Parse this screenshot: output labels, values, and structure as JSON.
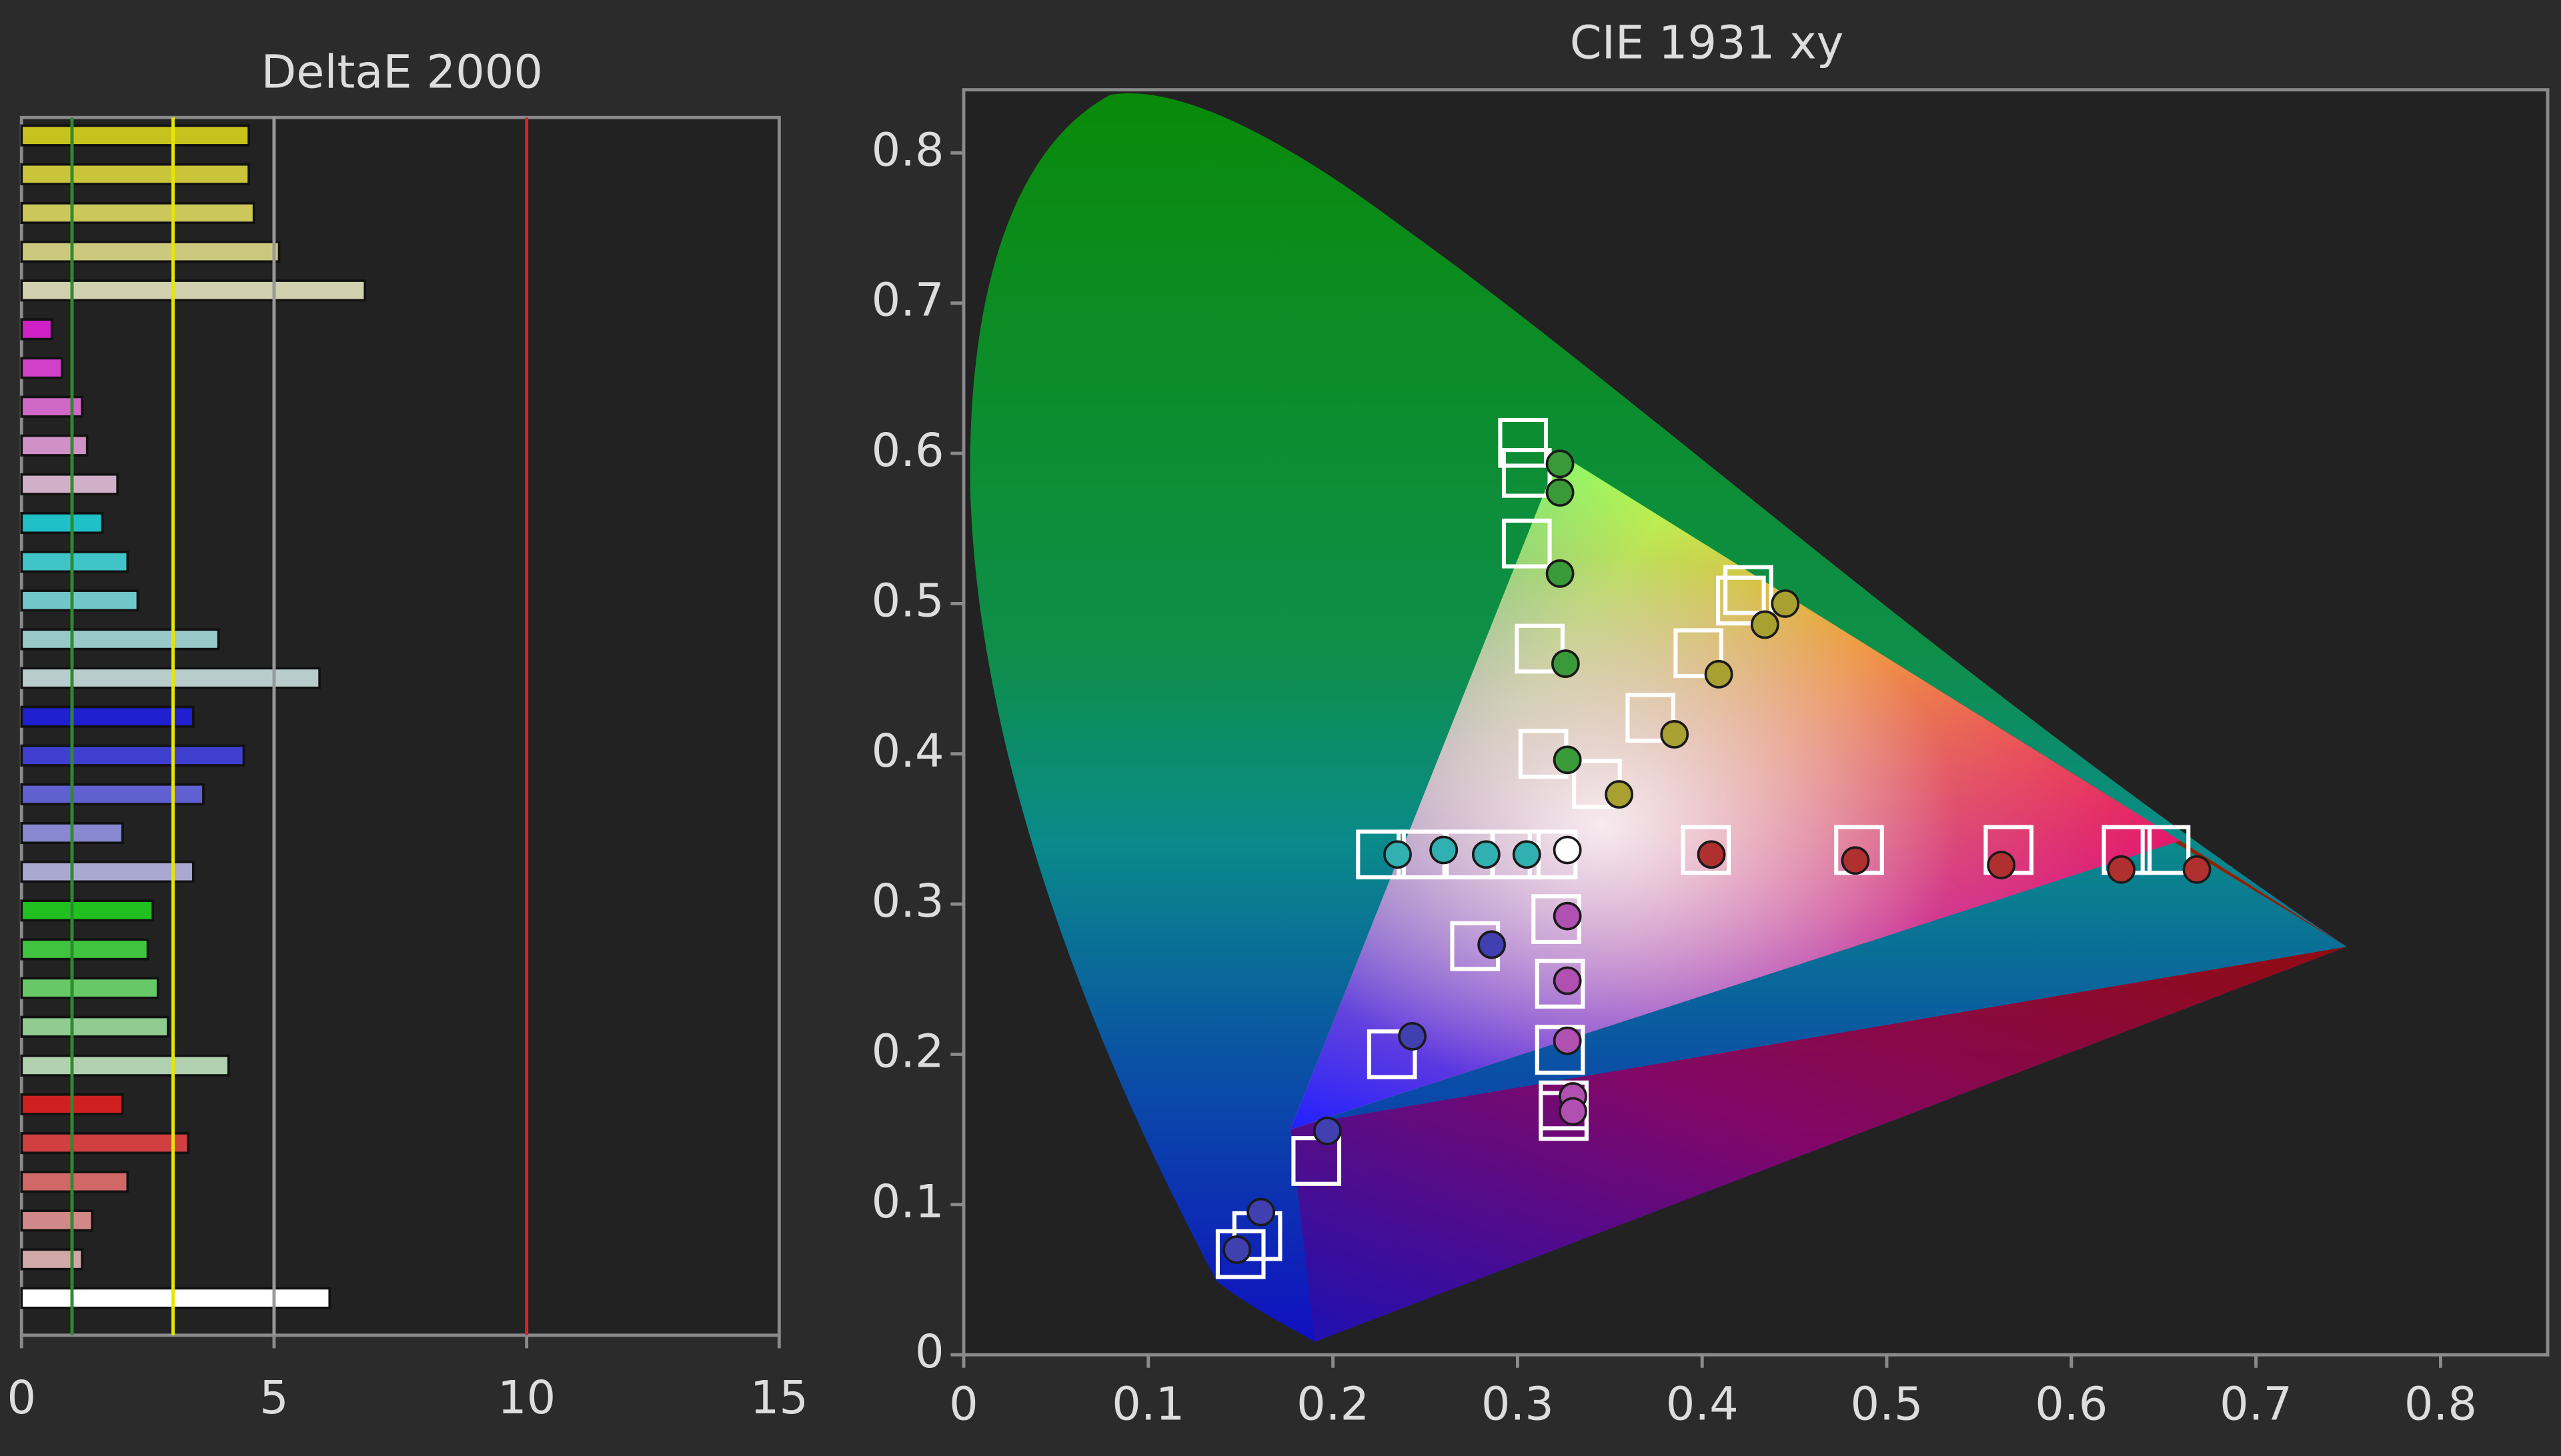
{
  "chart_data": [
    {
      "type": "bar",
      "orientation": "horizontal",
      "title": "DeltaE 2000",
      "values": [
        4.5,
        4.5,
        4.6,
        5.1,
        6.8,
        0.6,
        0.8,
        1.2,
        1.3,
        1.9,
        1.6,
        2.1,
        2.3,
        3.9,
        5.9,
        3.4,
        4.4,
        3.6,
        2.0,
        3.4,
        2.6,
        2.5,
        2.7,
        2.9,
        4.1,
        2.0,
        3.3,
        2.1,
        1.4,
        1.2,
        6.1
      ],
      "colors": [
        "#c8c21e",
        "#c9c43a",
        "#cbc75a",
        "#ccc97e",
        "#d0cfae",
        "#d020c8",
        "#d040c8",
        "#d068c8",
        "#d090c8",
        "#d0b0c8",
        "#20c0c8",
        "#40c4c8",
        "#70c6c8",
        "#98c8c8",
        "#b8cccc",
        "#2020d0",
        "#4040d0",
        "#6060d0",
        "#8888d0",
        "#a8a8d0",
        "#20c020",
        "#40c440",
        "#68c868",
        "#90cc90",
        "#b0d0b0",
        "#d02020",
        "#d04040",
        "#d06868",
        "#d08888",
        "#d0a8a8",
        "#ffffff"
      ],
      "xlim": [
        0,
        15
      ],
      "xticks": [
        0,
        5,
        10,
        15
      ],
      "reference_lines": [
        {
          "value": 1,
          "color": "#2e8b2e"
        },
        {
          "value": 3,
          "color": "#e6e600"
        },
        {
          "value": 5,
          "color": "#999999"
        },
        {
          "value": 10,
          "color": "#e02020"
        }
      ]
    },
    {
      "type": "scatter",
      "title": "CIE 1931 xy",
      "xlim": [
        0,
        0.858
      ],
      "ylim": [
        0,
        0.842
      ],
      "xticks": [
        0,
        0.1,
        0.2,
        0.3,
        0.4,
        0.5,
        0.6,
        0.7,
        0.8
      ],
      "yticks": [
        0,
        0.1,
        0.2,
        0.3,
        0.4,
        0.5,
        0.6,
        0.7,
        0.8
      ],
      "series": [
        {
          "marker": "square",
          "color": "#ffffff",
          "x": [
            0.303,
            0.305,
            0.305,
            0.312,
            0.314,
            0.425,
            0.421,
            0.398,
            0.372,
            0.343,
            0.651,
            0.63,
            0.566,
            0.485,
            0.402,
            0.226,
            0.248,
            0.274,
            0.299,
            0.319,
            0.321,
            0.323,
            0.323,
            0.325,
            0.325,
            0.277,
            0.232,
            0.191,
            0.159,
            0.15
          ],
          "y": [
            0.607,
            0.587,
            0.54,
            0.47,
            0.4,
            0.509,
            0.502,
            0.467,
            0.424,
            0.38,
            0.336,
            0.336,
            0.336,
            0.336,
            0.336,
            0.333,
            0.333,
            0.333,
            0.333,
            0.333,
            0.29,
            0.247,
            0.203,
            0.166,
            0.159,
            0.272,
            0.2,
            0.129,
            0.079,
            0.067
          ]
        },
        {
          "marker": "circle",
          "colors": [
            "#3a9a3a",
            "#3a9a3a",
            "#3a9a3a",
            "#3a9a3a",
            "#3a9a3a",
            "#a8a030",
            "#a8a030",
            "#a8a030",
            "#a8a030",
            "#a8a030",
            "#b03030",
            "#b03030",
            "#b03030",
            "#b03030",
            "#b03030",
            "#30b0b0",
            "#30b0b0",
            "#30b0b0",
            "#30b0b0",
            "#ffffff",
            "#b050b0",
            "#b050b0",
            "#b050b0",
            "#b050b0",
            "#b050b0",
            "#4040b0",
            "#4040b0",
            "#4040b0",
            "#4040b0",
            "#4040b0"
          ],
          "x": [
            0.323,
            0.323,
            0.323,
            0.326,
            0.327,
            0.445,
            0.434,
            0.409,
            0.385,
            0.355,
            0.668,
            0.627,
            0.562,
            0.483,
            0.405,
            0.235,
            0.26,
            0.283,
            0.305,
            0.327,
            0.327,
            0.327,
            0.327,
            0.33,
            0.33,
            0.286,
            0.243,
            0.197,
            0.161,
            0.148
          ],
          "y": [
            0.593,
            0.574,
            0.52,
            0.46,
            0.396,
            0.5,
            0.486,
            0.453,
            0.413,
            0.373,
            0.323,
            0.323,
            0.326,
            0.329,
            0.333,
            0.333,
            0.336,
            0.333,
            0.333,
            0.336,
            0.292,
            0.249,
            0.209,
            0.172,
            0.162,
            0.273,
            0.212,
            0.149,
            0.095,
            0.07
          ]
        }
      ]
    }
  ]
}
